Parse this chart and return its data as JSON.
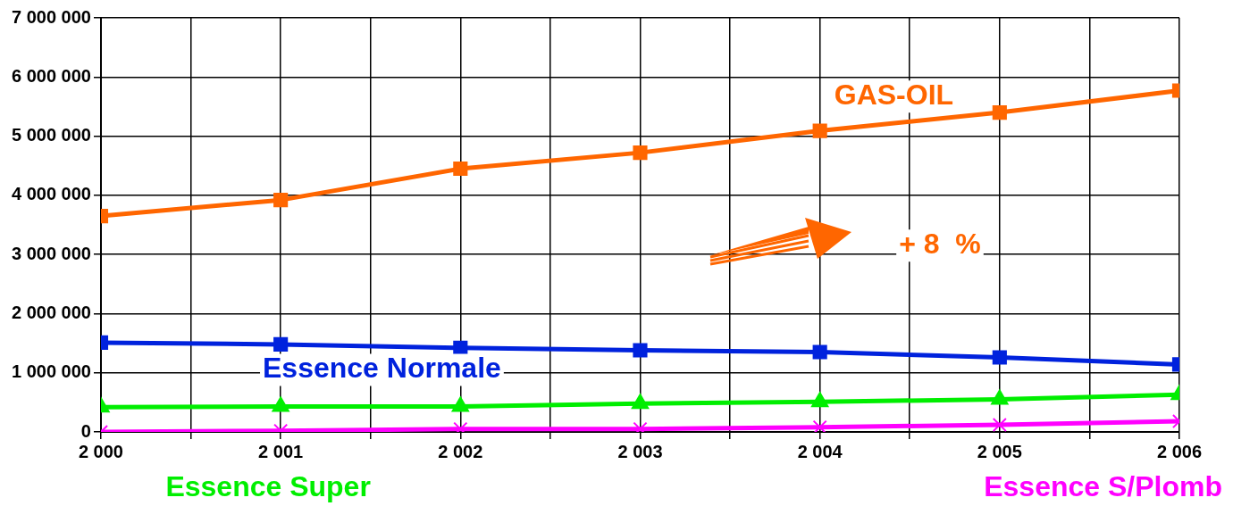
{
  "chart_data": {
    "type": "line",
    "x": [
      2000,
      2001,
      2002,
      2003,
      2004,
      2005,
      2006
    ],
    "series": [
      {
        "name": "GAS-OIL",
        "color": "#ff6600",
        "marker": "square",
        "values": [
          3650000,
          3920000,
          4450000,
          4720000,
          5090000,
          5400000,
          5770000
        ]
      },
      {
        "name": "Essence Normale",
        "color": "#0022dd",
        "marker": "square",
        "values": [
          1510000,
          1480000,
          1420000,
          1380000,
          1350000,
          1260000,
          1140000
        ]
      },
      {
        "name": "Essence Super",
        "color": "#00ee00",
        "marker": "triangle",
        "values": [
          420000,
          430000,
          430000,
          480000,
          510000,
          550000,
          630000
        ]
      },
      {
        "name": "Essence S/Plomb",
        "color": "#ff00ff",
        "marker": "cross",
        "values": [
          0,
          20000,
          50000,
          50000,
          80000,
          120000,
          180000
        ]
      }
    ],
    "xlim": [
      2000,
      2006
    ],
    "xticks": [
      {
        "value": 2000,
        "label": "2 000"
      },
      {
        "value": 2000.5,
        "label": null
      },
      {
        "value": 2001,
        "label": "2 001"
      },
      {
        "value": 2001.5,
        "label": null
      },
      {
        "value": 2002,
        "label": "2 002"
      },
      {
        "value": 2002.5,
        "label": null
      },
      {
        "value": 2003,
        "label": "2 003"
      },
      {
        "value": 2003.5,
        "label": null
      },
      {
        "value": 2004,
        "label": "2 004"
      },
      {
        "value": 2004.5,
        "label": null
      },
      {
        "value": 2005,
        "label": "2 005"
      },
      {
        "value": 2005.5,
        "label": null
      },
      {
        "value": 2006,
        "label": "2 006"
      }
    ],
    "ylim": [
      0,
      7000000
    ],
    "yticks": [
      {
        "value": 0,
        "label": "0"
      },
      {
        "value": 1000000,
        "label": "1 000 000"
      },
      {
        "value": 2000000,
        "label": "2 000 000"
      },
      {
        "value": 3000000,
        "label": "3 000 000"
      },
      {
        "value": 4000000,
        "label": "4 000 000"
      },
      {
        "value": 5000000,
        "label": "5 000 000"
      },
      {
        "value": 6000000,
        "label": "6 000 000"
      },
      {
        "value": 7000000,
        "label": "7 000 000"
      }
    ],
    "grid": true,
    "legend": false,
    "line_style": "solid",
    "annotations": [
      "+ 8  %"
    ]
  }
}
